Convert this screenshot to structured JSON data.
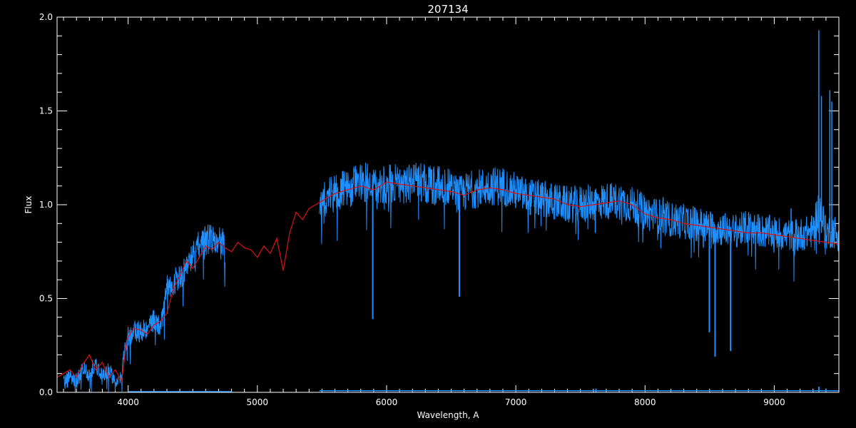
{
  "chart_data": {
    "type": "line",
    "title": "207134",
    "xlabel": "Wavelength, A",
    "ylabel": "Flux",
    "xlim": [
      3450,
      9500
    ],
    "ylim": [
      0,
      2.0
    ],
    "xticks": [
      4000,
      5000,
      6000,
      7000,
      8000,
      9000
    ],
    "xtick_labels": [
      "4000",
      "5000",
      "6000",
      "7000",
      "8000",
      "9000"
    ],
    "yticks": [
      0.0,
      0.5,
      1.0,
      1.5,
      2.0
    ],
    "ytick_labels": [
      "0.0",
      "0.5",
      "1.0",
      "1.5",
      "2.0"
    ],
    "grid": false,
    "colors": {
      "background": "#000000",
      "axes": "#ffffff",
      "observed": "#1e90ff",
      "model": "#dd1111",
      "error": "#1e90ff",
      "upper": "#ffffff"
    },
    "series": [
      {
        "key": "observed",
        "segments": [
          {
            "x": [
              3500,
              3550,
              3600,
              3650,
              3700,
              3750,
              3800,
              3850,
              3900,
              3950,
              3980,
              4000,
              4050,
              4100,
              4150,
              4200,
              4250,
              4300,
              4350,
              4400,
              4450,
              4500,
              4550,
              4600,
              4650,
              4700,
              4750
            ],
            "y": [
              0.05,
              0.08,
              0.06,
              0.12,
              0.1,
              0.15,
              0.08,
              0.12,
              0.05,
              0.1,
              0.25,
              0.3,
              0.33,
              0.32,
              0.35,
              0.38,
              0.34,
              0.55,
              0.58,
              0.62,
              0.66,
              0.72,
              0.78,
              0.8,
              0.82,
              0.8,
              0.78
            ]
          },
          {
            "x": [
              5480,
              5550,
              5650,
              5750,
              5850,
              5900,
              5950,
              6050,
              6150,
              6250,
              6400,
              6500,
              6560,
              6650,
              6800,
              6900,
              7000,
              7100,
              7200,
              7400,
              7600,
              7700,
              7800,
              7900,
              8000,
              8200,
              8400,
              8500,
              8600,
              8700,
              8800,
              8900,
              9000,
              9100,
              9200,
              9300,
              9350,
              9400,
              9450,
              9500
            ],
            "y": [
              1.0,
              1.05,
              1.08,
              1.1,
              1.12,
              1.08,
              1.1,
              1.12,
              1.11,
              1.12,
              1.1,
              1.09,
              1.05,
              1.08,
              1.1,
              1.1,
              1.07,
              1.04,
              1.03,
              1.0,
              1.01,
              1.02,
              1.02,
              1.0,
              0.96,
              0.92,
              0.9,
              0.88,
              0.87,
              0.86,
              0.88,
              0.86,
              0.85,
              0.84,
              0.84,
              0.86,
              1.0,
              0.85,
              0.86,
              0.85
            ]
          }
        ],
        "dips": [
          {
            "x": 5893,
            "y": 0.39
          },
          {
            "x": 6563,
            "y": 0.51
          },
          {
            "x": 8498,
            "y": 0.32
          },
          {
            "x": 8542,
            "y": 0.19
          },
          {
            "x": 8662,
            "y": 0.22
          }
        ],
        "spikes": [
          {
            "x": 9345,
            "y": 1.93
          },
          {
            "x": 9365,
            "y": 1.58
          },
          {
            "x": 9430,
            "y": 1.61
          },
          {
            "x": 9445,
            "y": 1.55
          },
          {
            "x": 9130,
            "y": 0.98
          },
          {
            "x": 8140,
            "y": 1.04
          },
          {
            "x": 7615,
            "y": 1.08
          }
        ]
      },
      {
        "key": "model",
        "x": [
          3450,
          3500,
          3550,
          3600,
          3650,
          3700,
          3750,
          3800,
          3850,
          3900,
          3950,
          3990,
          4020,
          4050,
          4100,
          4150,
          4200,
          4250,
          4300,
          4350,
          4400,
          4450,
          4500,
          4550,
          4600,
          4650,
          4700,
          4750,
          4800,
          4850,
          4900,
          4950,
          5000,
          5050,
          5100,
          5150,
          5200,
          5250,
          5300,
          5350,
          5400,
          5450,
          5500,
          5600,
          5700,
          5800,
          5900,
          6000,
          6100,
          6200,
          6300,
          6400,
          6500,
          6600,
          6700,
          6800,
          6900,
          7000,
          7100,
          7200,
          7300,
          7400,
          7500,
          7600,
          7700,
          7800,
          7900,
          8000,
          8100,
          8200,
          8300,
          8400,
          8500,
          8600,
          8700,
          8800,
          8900,
          9000,
          9100,
          9200,
          9300,
          9400,
          9500
        ],
        "y": [
          0.08,
          0.1,
          0.12,
          0.08,
          0.15,
          0.2,
          0.12,
          0.16,
          0.08,
          0.12,
          0.06,
          0.28,
          0.32,
          0.34,
          0.33,
          0.31,
          0.36,
          0.38,
          0.42,
          0.55,
          0.62,
          0.7,
          0.66,
          0.72,
          0.78,
          0.76,
          0.8,
          0.77,
          0.75,
          0.8,
          0.77,
          0.76,
          0.72,
          0.78,
          0.74,
          0.82,
          0.65,
          0.85,
          0.96,
          0.92,
          0.98,
          1.0,
          1.02,
          1.06,
          1.08,
          1.1,
          1.08,
          1.12,
          1.11,
          1.1,
          1.09,
          1.08,
          1.07,
          1.05,
          1.08,
          1.09,
          1.08,
          1.06,
          1.05,
          1.04,
          1.03,
          1.0,
          0.99,
          1.0,
          1.01,
          1.02,
          1.0,
          0.95,
          0.93,
          0.92,
          0.9,
          0.89,
          0.88,
          0.87,
          0.86,
          0.85,
          0.85,
          0.84,
          0.83,
          0.82,
          0.81,
          0.8,
          0.79
        ]
      },
      {
        "key": "error",
        "segments": [
          {
            "x": [
              4000,
              4800
            ],
            "y": [
              0.0,
              0.0
            ]
          },
          {
            "x": [
              5480,
              9500
            ],
            "y": [
              0.005,
              0.005
            ]
          }
        ],
        "bumps": [
          {
            "x": 7620,
            "y": 0.02
          },
          {
            "x": 9345,
            "y": 0.03
          },
          {
            "x": 9400,
            "y": 0.02
          }
        ]
      }
    ]
  }
}
